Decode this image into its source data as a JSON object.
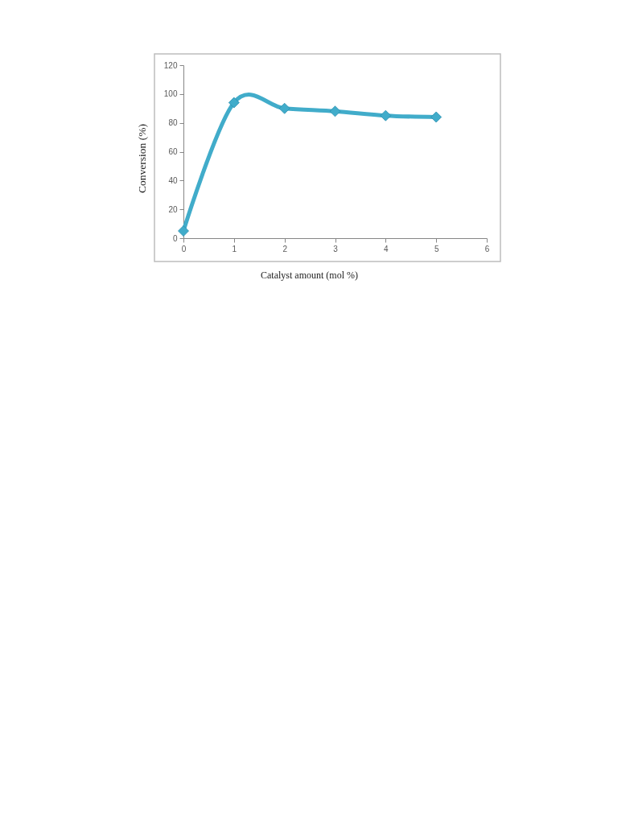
{
  "chart_data": {
    "type": "line",
    "xlabel": "Catalyst amount (mol %)",
    "ylabel": "Conversion (%)",
    "x": [
      0,
      1,
      2,
      3,
      4,
      5
    ],
    "series": [
      {
        "color": "#41acca",
        "values": [
          5,
          94,
          90,
          88,
          85,
          84
        ]
      }
    ],
    "xlim": [
      0,
      6
    ],
    "xticks": [
      0,
      1,
      2,
      3,
      4,
      5,
      6
    ],
    "ylim": [
      0,
      120
    ],
    "yticks": [
      0,
      20,
      40,
      60,
      80,
      100,
      120
    ],
    "grid": false,
    "marker": "diamond",
    "line_style": "solid"
  }
}
